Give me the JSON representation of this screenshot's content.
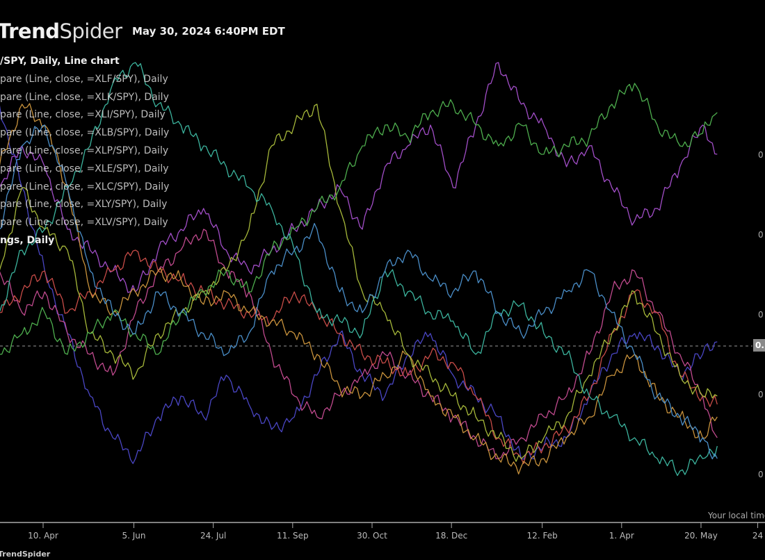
{
  "header": {
    "logo_bold": "Trend",
    "logo_light": "Spider",
    "timestamp": "May 30, 2024 6:40PM EDT"
  },
  "legend": {
    "main": "/SPY, Daily, Line chart",
    "items": [
      "pare (Line, close, =XLF/SPY), Daily",
      "pare (Line, close, =XLK/SPY), Daily",
      "pare (Line, close, =XLI/SPY), Daily",
      "pare (Line, close, =XLB/SPY), Daily",
      "pare (Line, close, =XLP/SPY), Daily",
      "pare (Line, close, =XLE/SPY), Daily",
      "pare (Line, close, =XLC/SPY), Daily",
      "pare (Line, close, =XLY/SPY), Daily",
      "pare (Line, close, =XLV/SPY), Daily"
    ],
    "footer_item": "ngs, Daily"
  },
  "axis": {
    "y_tick_labels": [
      "0",
      "0",
      "0",
      "0",
      "0"
    ],
    "price_tag": "0.",
    "local_time": "Your local time",
    "x_tick_labels": [
      "10. Apr",
      "5. Jun",
      "24. Jul",
      "11. Sep",
      "30. Oct",
      "18. Dec",
      "12. Feb",
      "1. Apr",
      "20. May",
      "24"
    ]
  },
  "footer": {
    "brand": "TrendSpider"
  },
  "chart_data": {
    "type": "line",
    "title": "",
    "xlabel": "",
    "ylabel": "",
    "grid": false,
    "legend_placement": "top-left",
    "x_ticks": [
      "2023-04-10",
      "2023-06-05",
      "2023-07-24",
      "2023-09-11",
      "2023-10-30",
      "2023-12-18",
      "2024-02-12",
      "2024-04-01",
      "2024-05-20",
      "2024-06-24"
    ],
    "x": [
      "2023-03-14",
      "2023-03-28",
      "2023-04-11",
      "2023-04-25",
      "2023-05-09",
      "2023-05-23",
      "2023-06-06",
      "2023-06-20",
      "2023-07-04",
      "2023-07-18",
      "2023-08-01",
      "2023-08-15",
      "2023-08-29",
      "2023-09-12",
      "2023-09-26",
      "2023-10-10",
      "2023-10-24",
      "2023-11-07",
      "2023-11-21",
      "2023-12-05",
      "2023-12-19",
      "2024-01-02",
      "2024-01-16",
      "2024-01-30",
      "2024-02-13",
      "2024-02-27",
      "2024-03-12",
      "2024-03-26",
      "2024-04-09",
      "2024-04-23",
      "2024-05-07",
      "2024-05-21",
      "2024-05-30"
    ],
    "ylim": [
      0,
      100
    ],
    "reference_line": 32,
    "series": [
      {
        "name": "=XLF/SPY",
        "color": "#4a46c4",
        "values": [
          90,
          70,
          50,
          35,
          20,
          10,
          5,
          15,
          20,
          15,
          25,
          18,
          12,
          15,
          25,
          35,
          25,
          20,
          30,
          35,
          25,
          20,
          15,
          5,
          8,
          10,
          20,
          30,
          35,
          32,
          25,
          30,
          33
        ]
      },
      {
        "name": "=XLK/SPY",
        "color": "#a24ec8",
        "values": [
          70,
          80,
          75,
          60,
          55,
          50,
          45,
          55,
          60,
          65,
          55,
          50,
          55,
          60,
          65,
          70,
          60,
          75,
          80,
          85,
          70,
          85,
          100,
          90,
          85,
          75,
          80,
          70,
          62,
          65,
          75,
          85,
          78
        ]
      },
      {
        "name": "=XLI/SPY",
        "color": "#c04a8e",
        "values": [
          50,
          40,
          45,
          35,
          30,
          25,
          40,
          50,
          55,
          60,
          50,
          45,
          30,
          20,
          15,
          20,
          25,
          30,
          25,
          20,
          15,
          10,
          5,
          10,
          15,
          20,
          30,
          45,
          50,
          40,
          30,
          20,
          10
        ]
      },
      {
        "name": "=XLB/SPY",
        "color": "#c84c48",
        "values": [
          40,
          45,
          50,
          40,
          45,
          50,
          55,
          50,
          48,
          45,
          42,
          40,
          38,
          45,
          40,
          35,
          30,
          28,
          25,
          30,
          28,
          20,
          10,
          5,
          8,
          12,
          20,
          35,
          45,
          40,
          25,
          20,
          18
        ]
      },
      {
        "name": "=XLP/SPY",
        "color": "#c8923c",
        "values": [
          75,
          90,
          85,
          70,
          45,
          40,
          45,
          50,
          48,
          42,
          45,
          40,
          38,
          35,
          30,
          22,
          20,
          25,
          30,
          20,
          15,
          10,
          5,
          3,
          5,
          10,
          15,
          25,
          30,
          20,
          15,
          10,
          15
        ]
      },
      {
        "name": "=XLE/SPY",
        "color": "#a6b83a",
        "values": [
          50,
          70,
          60,
          55,
          35,
          30,
          25,
          35,
          40,
          45,
          50,
          60,
          80,
          85,
          90,
          65,
          45,
          40,
          30,
          25,
          20,
          15,
          10,
          5,
          10,
          15,
          25,
          35,
          45,
          35,
          25,
          20,
          20
        ]
      },
      {
        "name": "=XLC/SPY",
        "color": "#4eae4e",
        "values": [
          30,
          35,
          40,
          30,
          35,
          40,
          35,
          30,
          40,
          45,
          50,
          45,
          55,
          60,
          65,
          70,
          80,
          85,
          82,
          88,
          90,
          85,
          80,
          85,
          78,
          80,
          82,
          90,
          95,
          85,
          80,
          83,
          88
        ]
      },
      {
        "name": "=XLY/SPY",
        "color": "#3cb49e",
        "values": [
          40,
          55,
          60,
          70,
          80,
          95,
          100,
          90,
          85,
          80,
          75,
          70,
          65,
          55,
          40,
          38,
          35,
          50,
          45,
          40,
          38,
          30,
          40,
          42,
          35,
          30,
          20,
          15,
          10,
          5,
          2,
          5,
          8
        ]
      },
      {
        "name": "=XLV/SPY",
        "color": "#4a8ec8",
        "values": [
          60,
          80,
          85,
          70,
          50,
          40,
          35,
          45,
          40,
          35,
          30,
          35,
          50,
          55,
          60,
          45,
          40,
          50,
          55,
          48,
          45,
          50,
          40,
          35,
          40,
          45,
          50,
          40,
          30,
          20,
          15,
          10,
          5
        ]
      }
    ]
  }
}
